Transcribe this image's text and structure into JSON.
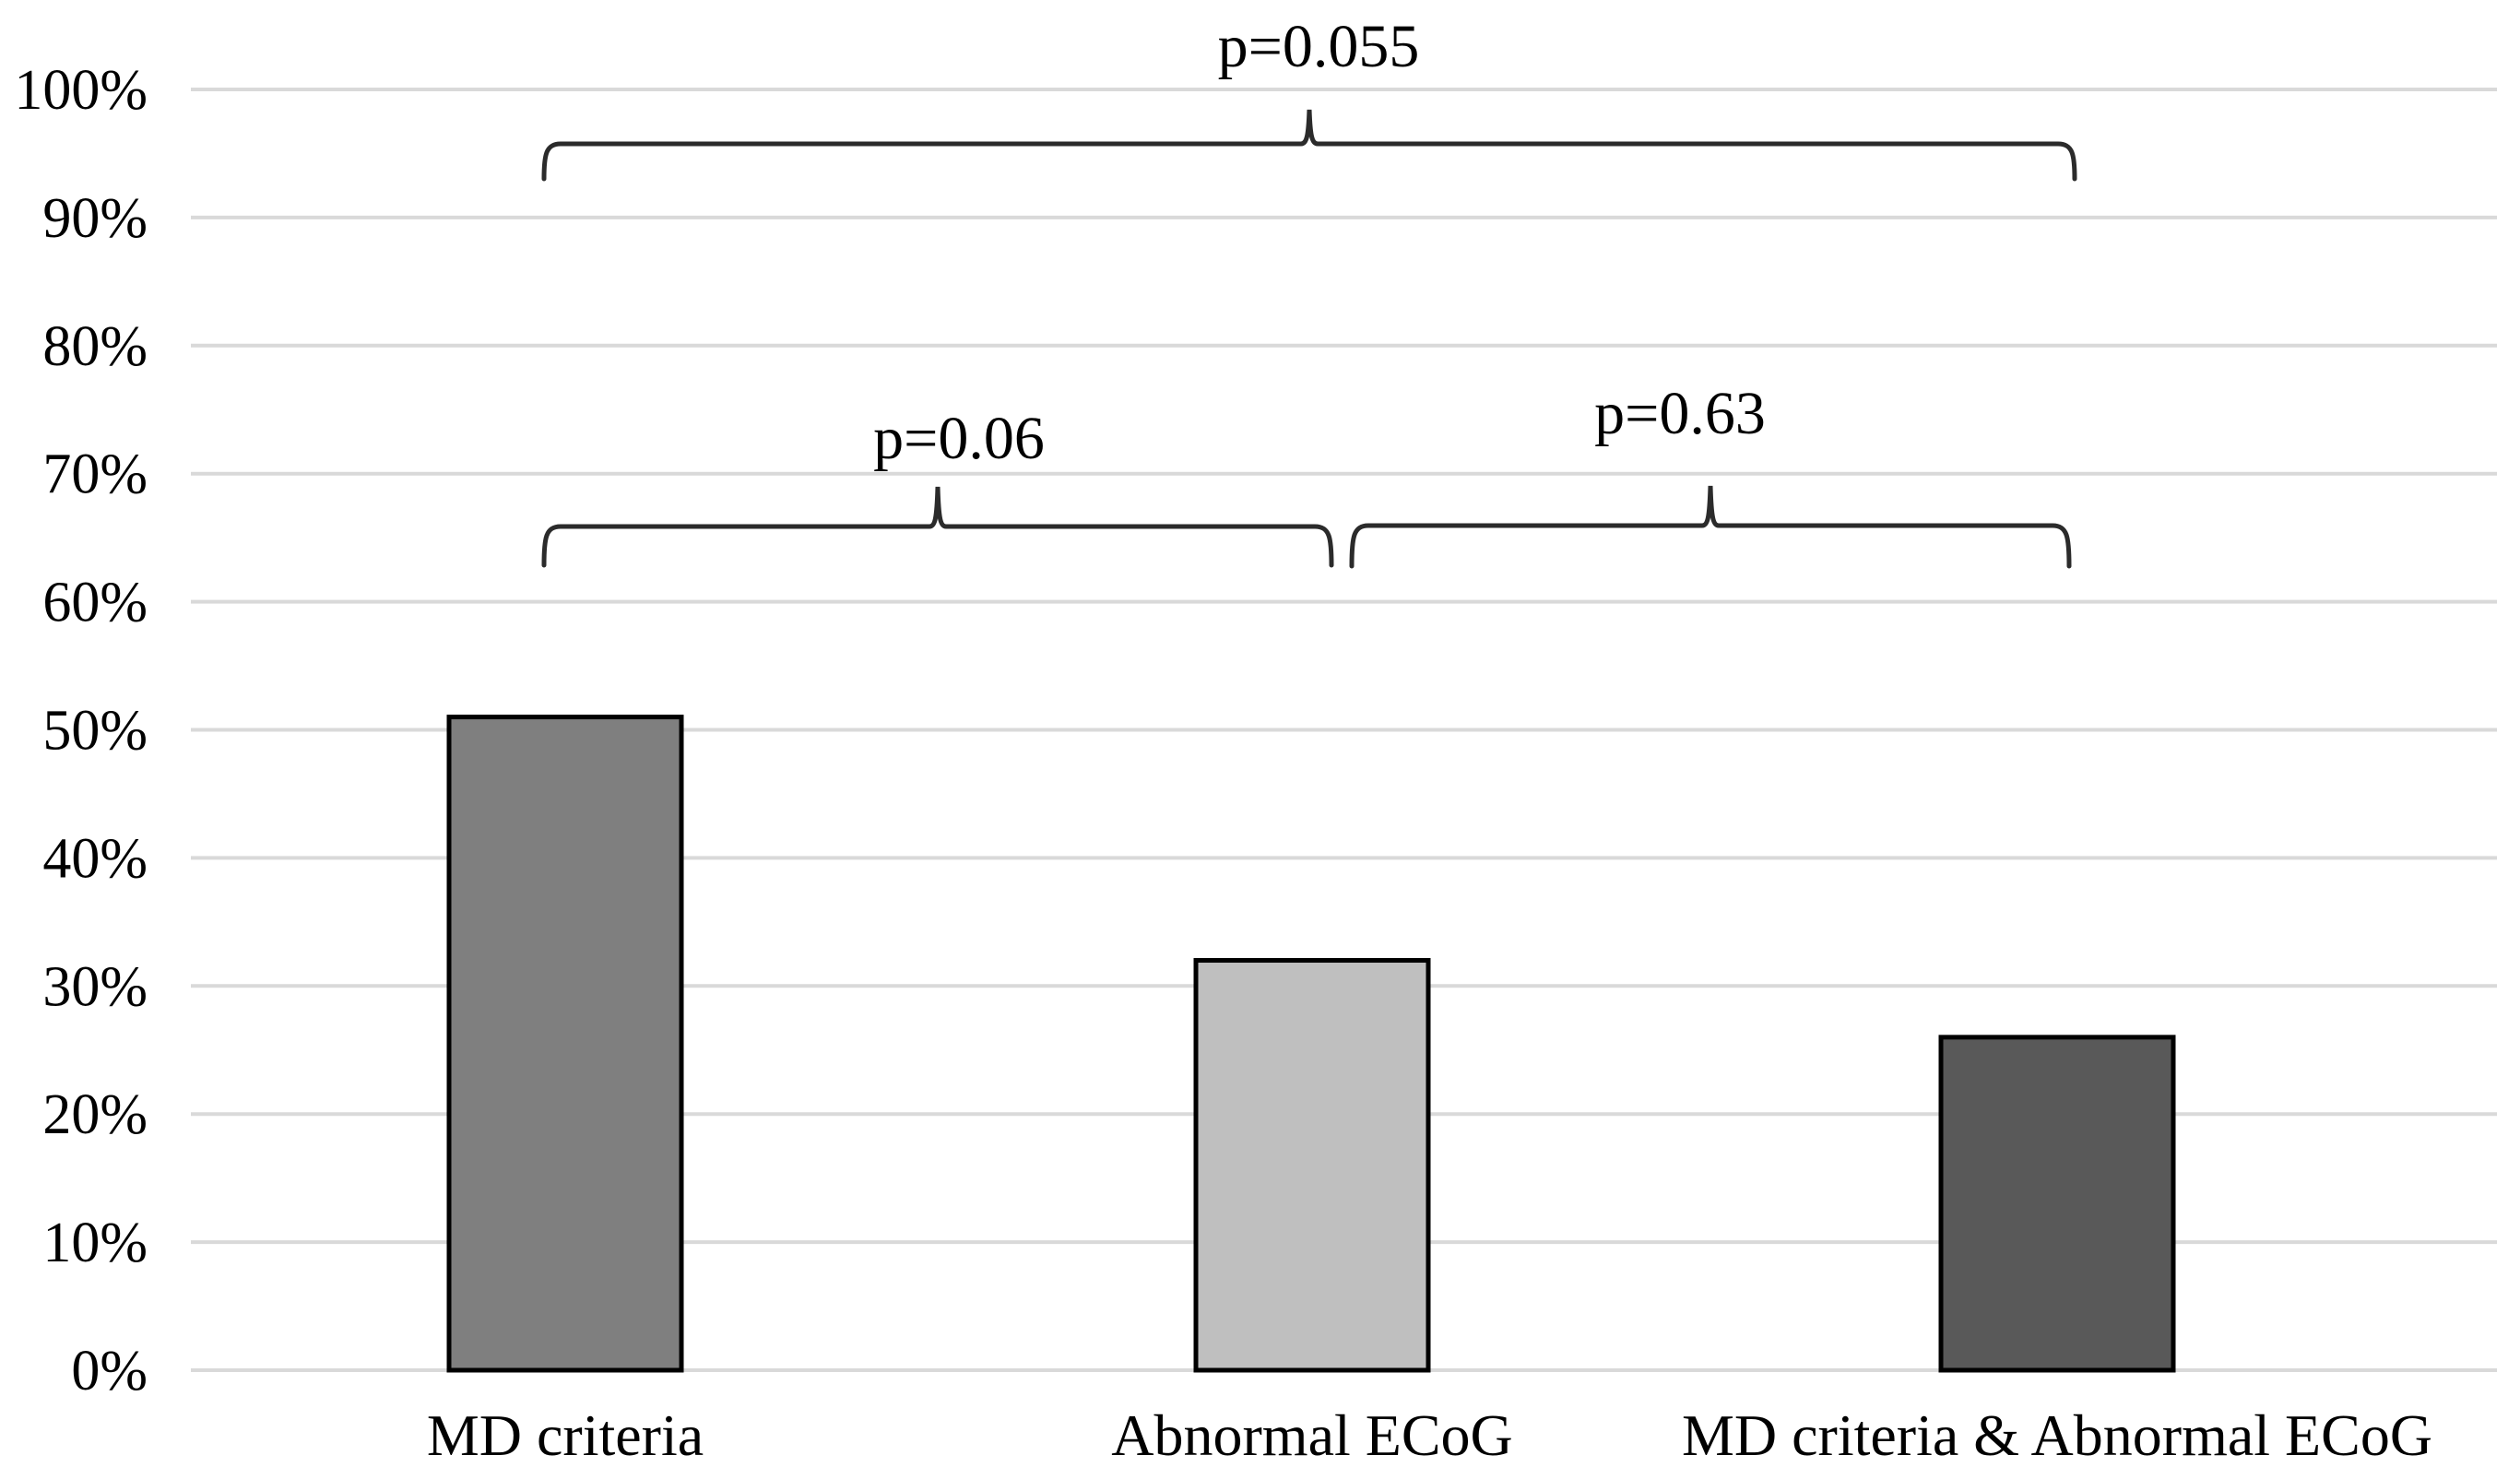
{
  "chart_data": {
    "type": "bar",
    "title": "",
    "categories": [
      "MD criteria",
      "Abnormal ECoG",
      "MD criteria & Abnormal ECoG"
    ],
    "values": [
      51,
      32,
      26
    ],
    "unit": "%",
    "ylabel": "",
    "xlabel": "",
    "ylim": [
      0,
      100
    ],
    "ytick_step": 10,
    "ytick_labels": [
      "0%",
      "10%",
      "20%",
      "30%",
      "40%",
      "50%",
      "60%",
      "70%",
      "80%",
      "90%",
      "100%"
    ],
    "grid": true,
    "legend": "none",
    "colors": {
      "bar_fills": [
        "#7f7f7f",
        "#bfbfbf",
        "#595959"
      ],
      "bar_border": "#000000",
      "gridline": "#d9d9d9",
      "bracket": "#2b2b2b",
      "text": "#000000",
      "background": "#ffffff"
    },
    "annotations": [
      {
        "label": "p=0.055",
        "between": [
          "MD criteria",
          "MD criteria & Abnormal ECoG"
        ]
      },
      {
        "label": "p=0.06",
        "between": [
          "MD criteria",
          "Abnormal ECoG"
        ]
      },
      {
        "label": "p=0.63",
        "between": [
          "Abnormal ECoG",
          "MD criteria & Abnormal ECoG"
        ]
      }
    ]
  }
}
